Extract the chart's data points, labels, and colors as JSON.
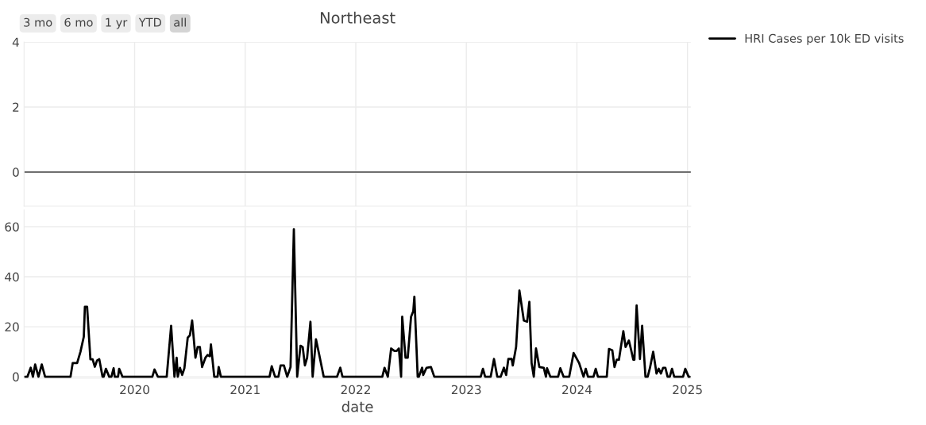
{
  "chart_data": [
    {
      "type": "line",
      "title": "Northeast",
      "annotations": [
        "3 mo",
        "6 mo",
        "1 yr",
        "YTD",
        "all"
      ],
      "xlim": [
        2019.0,
        2025.03
      ],
      "xticks": [
        2020,
        2021,
        2022,
        2023,
        2024,
        2025
      ],
      "ylim": [
        -1.05,
        4
      ],
      "yticks": [
        0,
        2,
        4
      ],
      "tick_labels": "y",
      "grid": true,
      "ref_lines": [
        {
          "axis": "y",
          "value": 0,
          "color": "#444444"
        }
      ]
    },
    {
      "type": "line",
      "xlabel": "date",
      "legend": "top right",
      "xlim": [
        2019.0,
        2025.03
      ],
      "xticks": [
        2020,
        2021,
        2022,
        2023,
        2024,
        2025
      ],
      "ylim": [
        -0.6,
        66.7
      ],
      "yticks": [
        0,
        20,
        40,
        60
      ],
      "grid": true,
      "series": [
        {
          "name": "HRI Cases per 10k ED visits",
          "color": "#000000",
          "x": [
            2019.01,
            2019.03,
            2019.06,
            2019.08,
            2019.1,
            2019.13,
            2019.16,
            2019.19,
            2019.42,
            2019.44,
            2019.48,
            2019.51,
            2019.54,
            2019.55,
            2019.57,
            2019.6,
            2019.62,
            2019.64,
            2019.66,
            2019.68,
            2019.71,
            2019.72,
            2019.74,
            2019.77,
            2019.79,
            2019.81,
            2019.82,
            2019.85,
            2019.86,
            2019.89,
            2020.16,
            2020.18,
            2020.21,
            2020.29,
            2020.33,
            2020.36,
            2020.38,
            2020.39,
            2020.41,
            2020.43,
            2020.45,
            2020.48,
            2020.5,
            2020.52,
            2020.55,
            2020.57,
            2020.59,
            2020.61,
            2020.64,
            2020.66,
            2020.68,
            2020.69,
            2020.72,
            2020.75,
            2020.76,
            2020.78,
            2020.91,
            2021.22,
            2021.24,
            2021.27,
            2021.3,
            2021.32,
            2021.35,
            2021.38,
            2021.41,
            2021.44,
            2021.47,
            2021.5,
            2021.52,
            2021.54,
            2021.56,
            2021.59,
            2021.61,
            2021.64,
            2021.67,
            2021.71,
            2021.83,
            2021.86,
            2021.88,
            2022.24,
            2022.26,
            2022.29,
            2022.32,
            2022.35,
            2022.37,
            2022.39,
            2022.41,
            2022.42,
            2022.45,
            2022.47,
            2022.5,
            2022.52,
            2022.53,
            2022.56,
            2022.57,
            2022.6,
            2022.61,
            2022.64,
            2022.68,
            2022.71,
            2022.97,
            2023.04,
            2023.13,
            2023.15,
            2023.17,
            2023.22,
            2023.25,
            2023.28,
            2023.31,
            2023.34,
            2023.36,
            2023.38,
            2023.41,
            2023.42,
            2023.45,
            2023.48,
            2023.52,
            2023.55,
            2023.57,
            2023.59,
            2023.61,
            2023.63,
            2023.66,
            2023.7,
            2023.72,
            2023.73,
            2023.76,
            2023.83,
            2023.85,
            2023.88,
            2023.93,
            2023.97,
            2024.02,
            2024.06,
            2024.08,
            2024.1,
            2024.15,
            2024.17,
            2024.19,
            2024.27,
            2024.29,
            2024.32,
            2024.34,
            2024.36,
            2024.38,
            2024.42,
            2024.44,
            2024.47,
            2024.49,
            2024.51,
            2024.52,
            2024.54,
            2024.57,
            2024.59,
            2024.62,
            2024.64,
            2024.66,
            2024.69,
            2024.72,
            2024.74,
            2024.76,
            2024.78,
            2024.8,
            2024.82,
            2024.84,
            2024.86,
            2024.88,
            2024.96,
            2024.98,
            2025.01,
            2025.02
          ],
          "values": [
            0,
            0,
            3.6,
            0,
            4.9,
            0,
            4.9,
            0,
            0,
            5.5,
            5.5,
            10,
            16,
            28,
            28,
            7,
            7,
            4,
            6.5,
            7,
            0,
            0,
            3.2,
            0,
            0,
            3.4,
            0,
            0,
            3.2,
            0,
            0,
            2.9,
            0,
            0,
            20.4,
            0,
            7.6,
            0,
            3.6,
            0.7,
            3.4,
            15.6,
            16.6,
            22.5,
            7.6,
            11.9,
            11.9,
            3.9,
            7.6,
            8.7,
            8.2,
            12.9,
            0,
            0,
            3.9,
            0,
            0,
            0,
            4.2,
            0,
            0,
            4.5,
            4.5,
            0,
            3.9,
            59,
            0,
            12.4,
            11.9,
            4.5,
            7.6,
            22,
            0,
            15,
            8.7,
            0,
            0,
            3.6,
            0,
            0,
            3.6,
            0,
            11.3,
            10.3,
            10.3,
            11.3,
            0,
            24,
            7.6,
            7.6,
            24,
            26.2,
            32,
            0,
            0,
            3.6,
            0.7,
            3.6,
            3.9,
            0,
            0,
            0,
            0,
            3.2,
            0,
            0,
            7.1,
            0,
            0,
            3.6,
            0.7,
            7.1,
            7.1,
            4.5,
            11.9,
            34.5,
            22.5,
            22,
            30,
            5.5,
            0,
            11.3,
            3.9,
            3.6,
            0,
            3.4,
            0,
            0,
            3.4,
            0,
            0,
            9.5,
            5.5,
            0,
            3.2,
            0,
            0,
            3.2,
            0,
            0,
            11.1,
            10.6,
            3.9,
            6.8,
            6.8,
            18.2,
            11.9,
            14.5,
            10.8,
            6.8,
            6.8,
            28.5,
            7.1,
            20.4,
            0,
            0,
            3.4,
            10,
            1.3,
            3.2,
            1.3,
            3.6,
            3.6,
            0,
            0,
            3.2,
            0,
            0,
            3.2,
            0,
            0
          ]
        }
      ]
    }
  ]
}
